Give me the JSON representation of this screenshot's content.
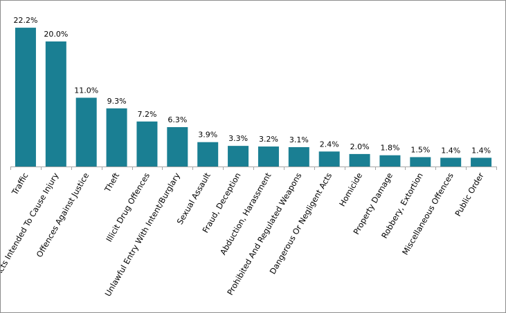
{
  "chart_data": {
    "type": "bar",
    "title": "",
    "xlabel": "",
    "ylabel": "",
    "categories": [
      "Traffic",
      "Acts Intended To Cause Injury",
      "Offences Against Justice",
      "Theft",
      "Illicit Drug Offences",
      "Unlawful Entry With Intent/Burglary",
      "Sexual Assault",
      "Fraud, Deception",
      "Abduction, Harassment",
      "Prohibited And Regulated Weapons",
      "Dangerous Or Negligent Acts",
      "Homicide",
      "Property Damage",
      "Robbery, Extortion",
      "Miscellaneous Offences",
      "Public Order"
    ],
    "values": [
      22.2,
      20.0,
      11.0,
      9.3,
      7.2,
      6.3,
      3.9,
      3.3,
      3.2,
      3.1,
      2.4,
      2.0,
      1.8,
      1.5,
      1.4,
      1.4
    ],
    "data_labels": [
      "22.2%",
      "20.0%",
      "11.0%",
      "9.3%",
      "7.2%",
      "6.3%",
      "3.9%",
      "3.3%",
      "3.2%",
      "3.1%",
      "2.4%",
      "2.0%",
      "1.8%",
      "1.5%",
      "1.4%",
      "1.4%"
    ],
    "ylim": [
      0,
      22.2
    ],
    "grid": false,
    "legend": "none",
    "bar_color": "#1a7f93",
    "axis_color": "#a6a6a6"
  }
}
